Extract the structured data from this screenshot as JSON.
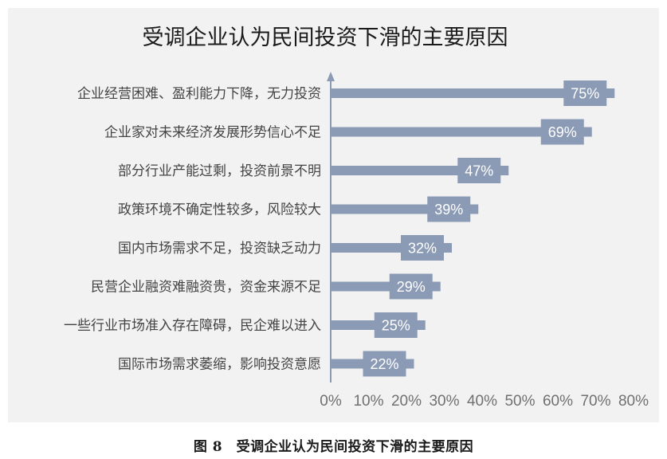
{
  "chart_data": {
    "type": "bar",
    "orientation": "horizontal",
    "title": "受调企业认为民间投资下滑的主要原因",
    "categories": [
      "企业经营困难、盈利能力下降，无力投资",
      "企业家对未来经济发展形势信心不足",
      "部分行业产能过剩，投资前景不明",
      "政策环境不确定性较多，风险较大",
      "国内市场需求不足，投资缺乏动力",
      "民营企业融资难融资贵，资金来源不足",
      "一些行业市场准入存在障碍，民企难以进入",
      "国际市场需求萎缩，影响投资意愿"
    ],
    "values": [
      75,
      69,
      47,
      39,
      32,
      29,
      25,
      22
    ],
    "value_labels": [
      "75%",
      "69%",
      "47%",
      "39%",
      "32%",
      "29%",
      "25%",
      "22%"
    ],
    "xlim": [
      0,
      80
    ],
    "xticks": [
      0,
      10,
      20,
      30,
      40,
      50,
      60,
      70,
      80
    ],
    "xtick_labels": [
      "0%",
      "10%",
      "20%",
      "30%",
      "40%",
      "50%",
      "60%",
      "70%",
      "80%"
    ],
    "grid": false,
    "legend": "none",
    "colors": {
      "bar": "#8c9bb5",
      "axis": "#8c9bb5",
      "panel_background": "#f2f2f2"
    }
  },
  "caption": "图 8　受调企业认为民间投资下滑的主要原因"
}
